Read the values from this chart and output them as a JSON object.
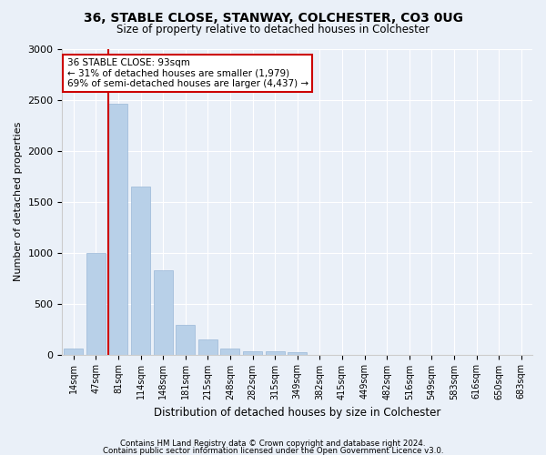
{
  "title1": "36, STABLE CLOSE, STANWAY, COLCHESTER, CO3 0UG",
  "title2": "Size of property relative to detached houses in Colchester",
  "xlabel": "Distribution of detached houses by size in Colchester",
  "ylabel": "Number of detached properties",
  "categories": [
    "14sqm",
    "47sqm",
    "81sqm",
    "114sqm",
    "148sqm",
    "181sqm",
    "215sqm",
    "248sqm",
    "282sqm",
    "315sqm",
    "349sqm",
    "382sqm",
    "415sqm",
    "449sqm",
    "482sqm",
    "516sqm",
    "549sqm",
    "583sqm",
    "616sqm",
    "650sqm",
    "683sqm"
  ],
  "values": [
    55,
    1000,
    2460,
    1650,
    830,
    295,
    145,
    55,
    30,
    30,
    20,
    0,
    0,
    0,
    0,
    0,
    0,
    0,
    0,
    0,
    0
  ],
  "bar_color": "#b8d0e8",
  "bar_edge_color": "#9ab8d8",
  "vline_color": "#cc0000",
  "vline_x_index": 2,
  "annotation_text": "36 STABLE CLOSE: 93sqm\n← 31% of detached houses are smaller (1,979)\n69% of semi-detached houses are larger (4,437) →",
  "annotation_box_color": "#ffffff",
  "annotation_box_edge": "#cc0000",
  "ylim": [
    0,
    3000
  ],
  "yticks": [
    0,
    500,
    1000,
    1500,
    2000,
    2500,
    3000
  ],
  "footer1": "Contains HM Land Registry data © Crown copyright and database right 2024.",
  "footer2": "Contains public sector information licensed under the Open Government Licence v3.0.",
  "bg_color": "#eaf0f8",
  "plot_bg_color": "#eaf0f8"
}
